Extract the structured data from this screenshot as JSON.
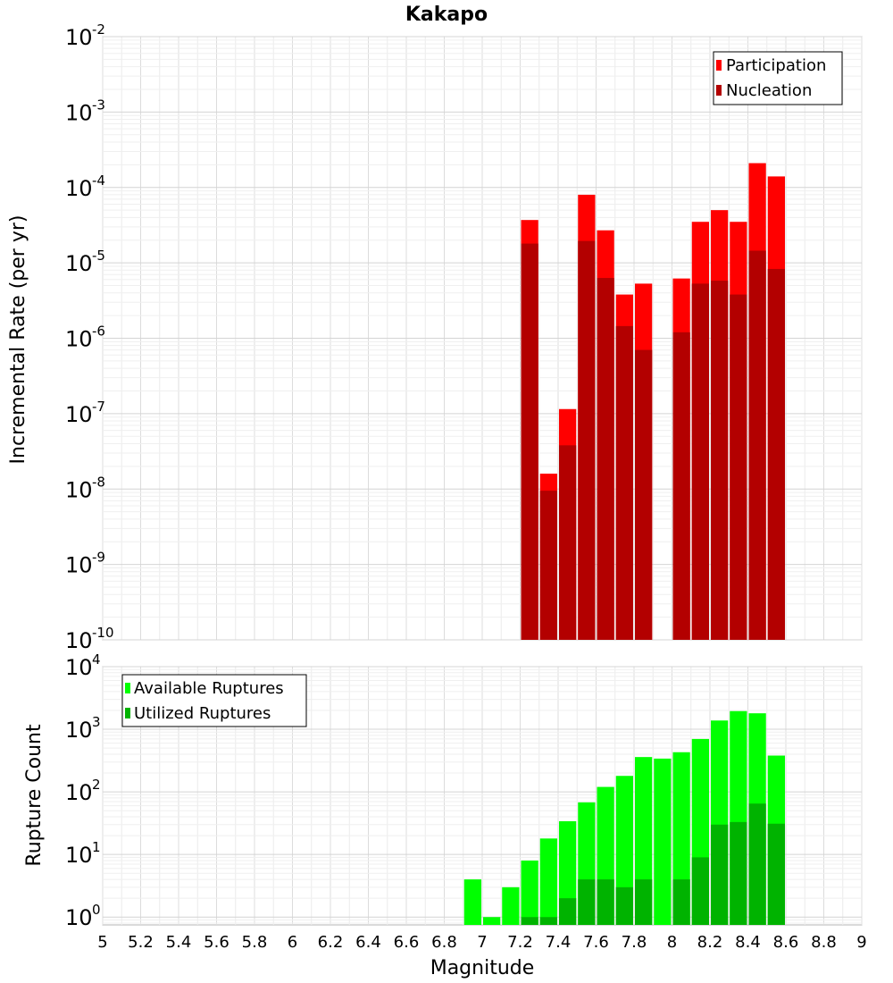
{
  "chart_data": [
    {
      "type": "bar",
      "title": "Kakapo",
      "xlabel": "",
      "ylabel": "Incremental Rate (per yr)",
      "yscale": "log",
      "ylim": [
        1e-10,
        0.01
      ],
      "xlim": [
        5,
        9
      ],
      "grid": true,
      "legend_position": "top-right",
      "bin_width": 0.1,
      "series": [
        {
          "name": "Participation",
          "color": "#ff0000",
          "x": [
            7.25,
            7.35,
            7.45,
            7.55,
            7.65,
            7.75,
            7.85,
            8.05,
            8.15,
            8.25,
            8.35,
            8.45,
            8.55
          ],
          "values": [
            3.7e-05,
            1.6e-08,
            1.15e-07,
            8e-05,
            2.7e-05,
            3.8e-06,
            5.3e-06,
            6.2e-06,
            3.5e-05,
            5e-05,
            3.5e-05,
            0.00021,
            0.00014
          ]
        },
        {
          "name": "Nucleation",
          "color": "#b30000",
          "x": [
            7.25,
            7.35,
            7.45,
            7.55,
            7.65,
            7.75,
            7.85,
            8.05,
            8.15,
            8.25,
            8.35,
            8.45,
            8.55
          ],
          "values": [
            1.8e-05,
            9.5e-09,
            3.8e-08,
            1.95e-05,
            6.3e-06,
            1.45e-06,
            7e-07,
            1.2e-06,
            5.3e-06,
            5.8e-06,
            3.8e-06,
            1.45e-05,
            8.3e-06
          ]
        }
      ],
      "y_ticks": [
        {
          "base": "10",
          "exp": "-2"
        },
        {
          "base": "10",
          "exp": "-3"
        },
        {
          "base": "10",
          "exp": "-4"
        },
        {
          "base": "10",
          "exp": "-5"
        },
        {
          "base": "10",
          "exp": "-6"
        },
        {
          "base": "10",
          "exp": "-7"
        },
        {
          "base": "10",
          "exp": "-8"
        },
        {
          "base": "10",
          "exp": "-9"
        },
        {
          "base": "10",
          "exp": "-10"
        }
      ]
    },
    {
      "type": "bar",
      "title": "",
      "xlabel": "Magnitude",
      "ylabel": "Rupture Count",
      "yscale": "log",
      "ylim": [
        0.75,
        10000
      ],
      "xlim": [
        5,
        9
      ],
      "grid": true,
      "legend_position": "top-left",
      "bin_width": 0.1,
      "series": [
        {
          "name": "Available Ruptures",
          "color": "#00ff00",
          "x": [
            6.95,
            7.05,
            7.15,
            7.25,
            7.35,
            7.45,
            7.55,
            7.65,
            7.75,
            7.85,
            7.95,
            8.05,
            8.15,
            8.25,
            8.35,
            8.45,
            8.55
          ],
          "values": [
            4,
            1,
            3,
            8,
            18,
            34,
            68,
            120,
            180,
            360,
            340,
            430,
            700,
            1380,
            1950,
            1800,
            380
          ]
        },
        {
          "name": "Utilized Ruptures",
          "color": "#00b300",
          "x": [
            7.25,
            7.35,
            7.45,
            7.55,
            7.65,
            7.75,
            7.85,
            8.05,
            8.15,
            8.25,
            8.35,
            8.45,
            8.55
          ],
          "values": [
            1,
            1,
            2,
            4,
            4,
            3,
            4,
            4,
            9,
            30,
            33,
            65,
            31
          ]
        }
      ],
      "y_ticks": [
        {
          "base": "10",
          "exp": "4"
        },
        {
          "base": "10",
          "exp": "3"
        },
        {
          "base": "10",
          "exp": "2"
        },
        {
          "base": "10",
          "exp": "1"
        },
        {
          "base": "10",
          "exp": "0"
        }
      ],
      "x_ticks": [
        "5",
        "5.2",
        "5.4",
        "5.6",
        "5.8",
        "6",
        "6.2",
        "6.4",
        "6.6",
        "6.8",
        "7",
        "7.2",
        "7.4",
        "7.6",
        "7.8",
        "8",
        "8.2",
        "8.4",
        "8.6",
        "8.8",
        "9"
      ]
    }
  ]
}
